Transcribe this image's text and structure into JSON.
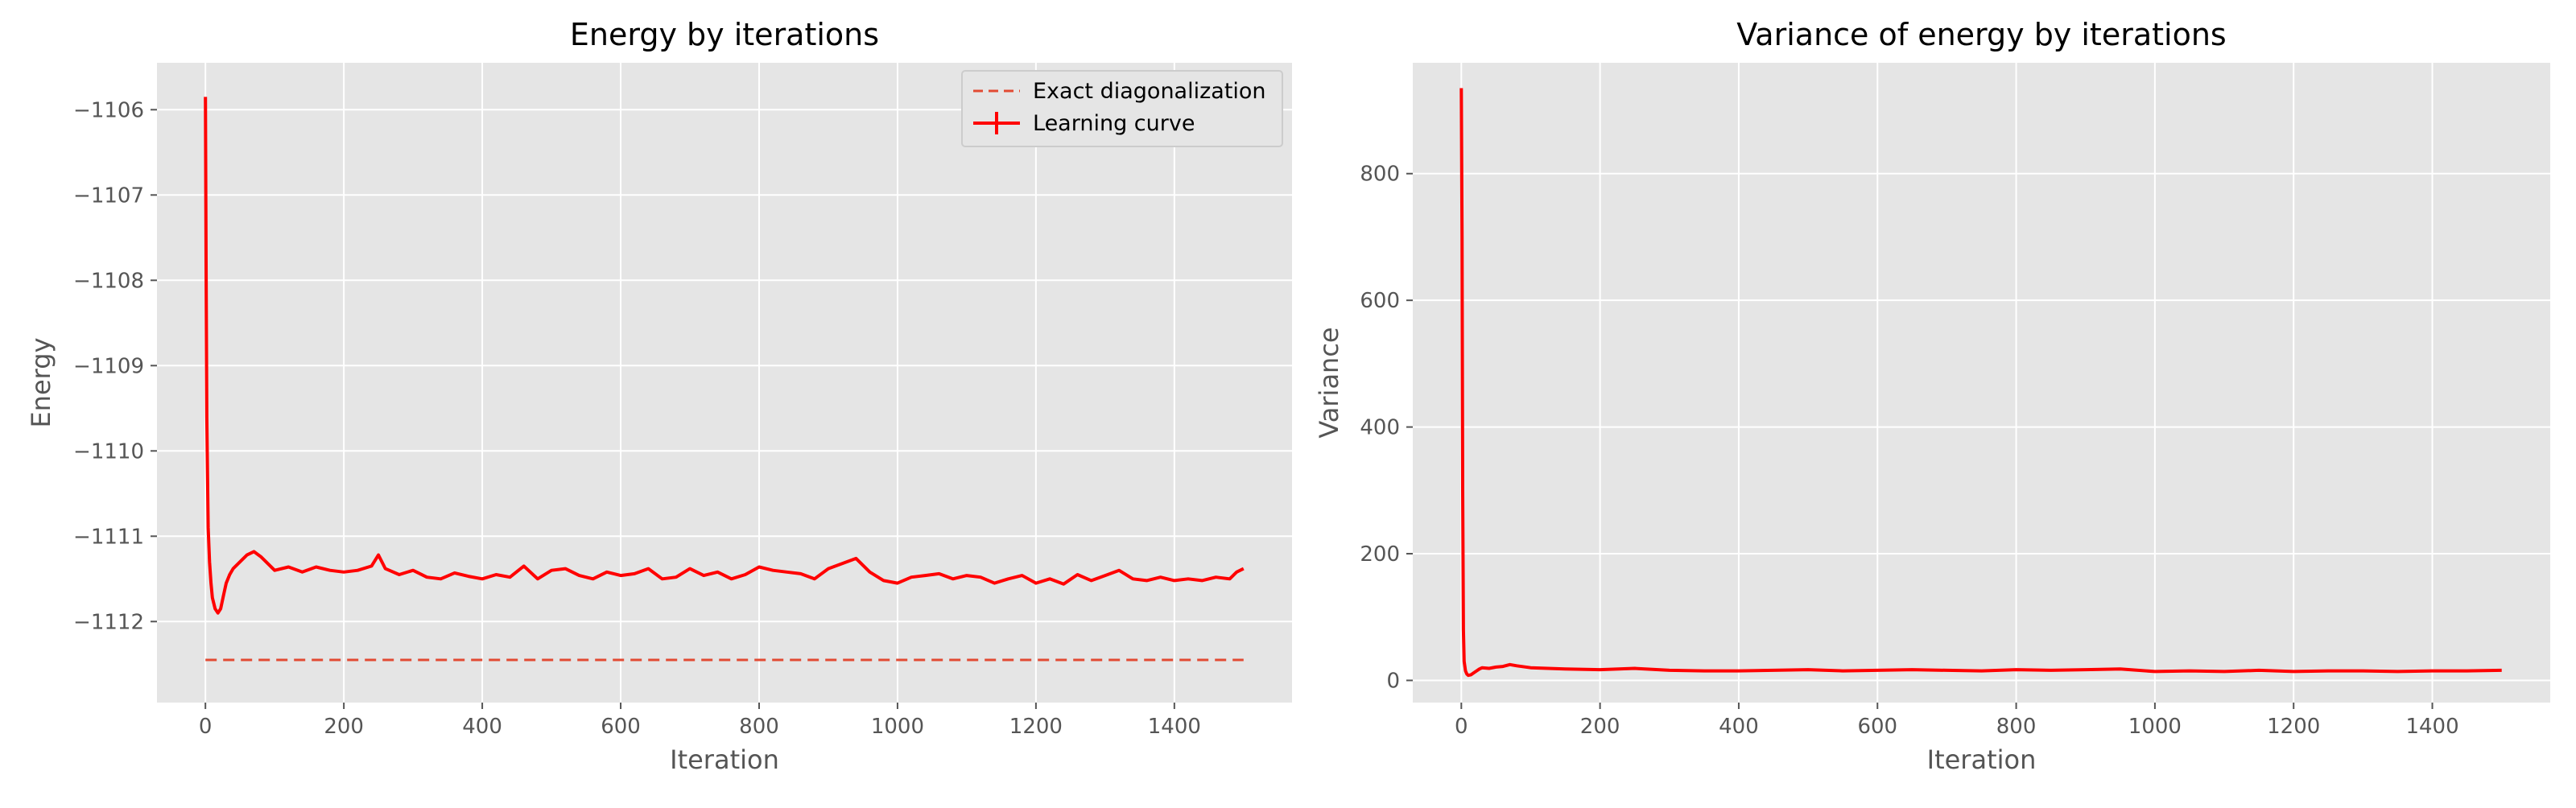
{
  "chart_data": [
    {
      "type": "line",
      "title": "Energy by iterations",
      "xlabel": "Iteration",
      "ylabel": "Energy",
      "xlim": [
        -70,
        1570
      ],
      "ylim": [
        -1112.95,
        -1105.45
      ],
      "xticks": [
        0,
        200,
        400,
        600,
        800,
        1000,
        1200,
        1400
      ],
      "xtick_labels": [
        "0",
        "200",
        "400",
        "600",
        "800",
        "1000",
        "1200",
        "1400"
      ],
      "yticks": [
        -1112,
        -1111,
        -1110,
        -1109,
        -1108,
        -1107,
        -1106
      ],
      "ytick_labels": [
        "−1112",
        "−1111",
        "−1110",
        "−1109",
        "−1108",
        "−1107",
        "−1106"
      ],
      "grid": true,
      "legend_position": "top-right",
      "series": [
        {
          "name": "Exact diagonalization",
          "style": "dashed",
          "color": "#e24a33",
          "x": [
            0,
            1500
          ],
          "y": [
            -1112.45,
            -1112.45
          ]
        },
        {
          "name": "Learning curve",
          "style": "solid-with-errorbars",
          "color": "#ff0000",
          "x": [
            0,
            1,
            2,
            3,
            4,
            6,
            8,
            10,
            14,
            18,
            22,
            26,
            30,
            35,
            40,
            50,
            60,
            70,
            80,
            90,
            100,
            120,
            140,
            160,
            180,
            200,
            220,
            240,
            250,
            255,
            260,
            280,
            300,
            320,
            340,
            360,
            380,
            400,
            420,
            440,
            460,
            480,
            500,
            520,
            540,
            560,
            580,
            600,
            620,
            640,
            660,
            680,
            700,
            720,
            740,
            760,
            780,
            800,
            820,
            840,
            860,
            880,
            900,
            920,
            940,
            960,
            980,
            1000,
            1020,
            1040,
            1060,
            1080,
            1100,
            1120,
            1140,
            1160,
            1180,
            1200,
            1220,
            1240,
            1260,
            1280,
            1300,
            1320,
            1340,
            1360,
            1380,
            1400,
            1420,
            1440,
            1460,
            1480,
            1490,
            1500
          ],
          "y": [
            -1105.85,
            -1107.8,
            -1109.6,
            -1110.3,
            -1110.9,
            -1111.3,
            -1111.55,
            -1111.72,
            -1111.85,
            -1111.9,
            -1111.85,
            -1111.7,
            -1111.55,
            -1111.45,
            -1111.38,
            -1111.3,
            -1111.22,
            -1111.18,
            -1111.24,
            -1111.32,
            -1111.4,
            -1111.36,
            -1111.42,
            -1111.36,
            -1111.4,
            -1111.42,
            -1111.4,
            -1111.35,
            -1111.22,
            -1111.3,
            -1111.38,
            -1111.45,
            -1111.4,
            -1111.48,
            -1111.5,
            -1111.43,
            -1111.47,
            -1111.5,
            -1111.45,
            -1111.48,
            -1111.35,
            -1111.5,
            -1111.4,
            -1111.38,
            -1111.46,
            -1111.5,
            -1111.42,
            -1111.46,
            -1111.44,
            -1111.38,
            -1111.5,
            -1111.48,
            -1111.38,
            -1111.46,
            -1111.42,
            -1111.5,
            -1111.45,
            -1111.36,
            -1111.4,
            -1111.42,
            -1111.44,
            -1111.5,
            -1111.38,
            -1111.32,
            -1111.26,
            -1111.42,
            -1111.52,
            -1111.55,
            -1111.48,
            -1111.46,
            -1111.44,
            -1111.5,
            -1111.46,
            -1111.48,
            -1111.55,
            -1111.5,
            -1111.46,
            -1111.55,
            -1111.5,
            -1111.56,
            -1111.45,
            -1111.52,
            -1111.46,
            -1111.4,
            -1111.5,
            -1111.52,
            -1111.48,
            -1111.52,
            -1111.5,
            -1111.52,
            -1111.48,
            -1111.5,
            -1111.42,
            -1111.38
          ]
        }
      ]
    },
    {
      "type": "line",
      "title": "Variance of energy by iterations",
      "xlabel": "Iteration",
      "ylabel": "Variance",
      "xlim": [
        -70,
        1570
      ],
      "ylim": [
        -35,
        975
      ],
      "xticks": [
        0,
        200,
        400,
        600,
        800,
        1000,
        1200,
        1400
      ],
      "xtick_labels": [
        "0",
        "200",
        "400",
        "600",
        "800",
        "1000",
        "1200",
        "1400"
      ],
      "yticks": [
        0,
        200,
        400,
        600,
        800
      ],
      "ytick_labels": [
        "0",
        "200",
        "400",
        "600",
        "800"
      ],
      "grid": true,
      "series": [
        {
          "color": "#ff0000",
          "x": [
            0,
            1,
            2,
            3,
            4,
            6,
            8,
            10,
            14,
            18,
            22,
            26,
            30,
            40,
            50,
            60,
            70,
            80,
            100,
            150,
            200,
            250,
            300,
            350,
            400,
            450,
            500,
            550,
            600,
            650,
            700,
            750,
            800,
            850,
            900,
            950,
            1000,
            1050,
            1100,
            1150,
            1200,
            1250,
            1300,
            1350,
            1400,
            1450,
            1500
          ],
          "y": [
            935,
            700,
            300,
            80,
            30,
            15,
            10,
            8,
            9,
            12,
            15,
            18,
            20,
            19,
            21,
            22,
            25,
            23,
            20,
            18,
            17,
            19,
            16,
            15,
            15,
            16,
            17,
            15,
            16,
            17,
            16,
            15,
            17,
            16,
            17,
            18,
            14,
            15,
            14,
            16,
            14,
            15,
            15,
            14,
            15,
            15,
            16
          ]
        }
      ]
    }
  ]
}
